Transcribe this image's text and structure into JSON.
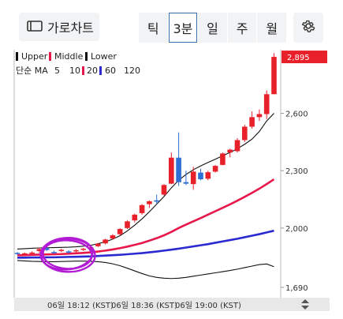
{
  "toolbar": {
    "landscape_label": "가로차트",
    "tabs": [
      {
        "label": "틱",
        "active": false
      },
      {
        "label": "3분",
        "active": true
      },
      {
        "label": "일",
        "active": false
      },
      {
        "label": "주",
        "active": false
      },
      {
        "label": "월",
        "active": false
      }
    ]
  },
  "legend": {
    "bollinger": [
      {
        "label": "Upper",
        "color": "#111111"
      },
      {
        "label": "Middle",
        "color": "#e8174a"
      },
      {
        "label": "Lower",
        "color": "#111111"
      }
    ],
    "ma_title": "단순 MA",
    "ma": [
      {
        "label": "5",
        "color": null
      },
      {
        "label": "10",
        "color": null
      },
      {
        "label": "20",
        "color": "#e8174a"
      },
      {
        "label": "60",
        "color": "#2a2ad0"
      },
      {
        "label": "120",
        "color": null
      }
    ]
  },
  "price_axis": {
    "ticks": [
      "2,600",
      "2,300",
      "2,000",
      "1,690"
    ],
    "current_price": "2,895"
  },
  "time_axis": {
    "labels": [
      "06일 18:12 (KST)",
      "06일 18:36 (KST)",
      "06일 19:00 (KST)"
    ]
  },
  "colors": {
    "up": "#e8202a",
    "down": "#2e6fd6",
    "ma20": "#e8174a",
    "ma60": "#2a2ad0",
    "band": "#111111",
    "annotation_circle": "#b21bd3"
  },
  "chart_data": {
    "type": "candlestick",
    "y_range": [
      1640,
      2920
    ],
    "y_ticks": [
      2600,
      2300,
      2000,
      1690
    ],
    "candles": [
      {
        "o": 1870,
        "h": 1875,
        "l": 1860,
        "c": 1865
      },
      {
        "o": 1865,
        "h": 1872,
        "l": 1858,
        "c": 1868
      },
      {
        "o": 1870,
        "h": 1878,
        "l": 1862,
        "c": 1872
      },
      {
        "o": 1880,
        "h": 1898,
        "l": 1870,
        "c": 1890
      },
      {
        "o": 1895,
        "h": 1902,
        "l": 1880,
        "c": 1885
      },
      {
        "o": 1875,
        "h": 1882,
        "l": 1866,
        "c": 1870
      },
      {
        "o": 1882,
        "h": 1892,
        "l": 1874,
        "c": 1886
      },
      {
        "o": 1878,
        "h": 1884,
        "l": 1866,
        "c": 1872
      },
      {
        "o": 1880,
        "h": 1890,
        "l": 1872,
        "c": 1884
      },
      {
        "o": 1886,
        "h": 1896,
        "l": 1880,
        "c": 1892
      },
      {
        "o": 1893,
        "h": 1905,
        "l": 1886,
        "c": 1900
      },
      {
        "o": 1905,
        "h": 1922,
        "l": 1900,
        "c": 1918
      },
      {
        "o": 1920,
        "h": 1944,
        "l": 1914,
        "c": 1940
      },
      {
        "o": 1945,
        "h": 1968,
        "l": 1940,
        "c": 1962
      },
      {
        "o": 1968,
        "h": 2000,
        "l": 1960,
        "c": 1995
      },
      {
        "o": 2000,
        "h": 2040,
        "l": 1995,
        "c": 2035
      },
      {
        "o": 2040,
        "h": 2075,
        "l": 2030,
        "c": 2070
      },
      {
        "o": 2078,
        "h": 2125,
        "l": 2070,
        "c": 2120
      },
      {
        "o": 2125,
        "h": 2145,
        "l": 2105,
        "c": 2140
      },
      {
        "o": 2145,
        "h": 2175,
        "l": 2125,
        "c": 2138
      },
      {
        "o": 2175,
        "h": 2230,
        "l": 2170,
        "c": 2225
      },
      {
        "o": 2232,
        "h": 2395,
        "l": 2230,
        "c": 2368
      },
      {
        "o": 2368,
        "h": 2500,
        "l": 2220,
        "c": 2240
      },
      {
        "o": 2240,
        "h": 2300,
        "l": 2225,
        "c": 2232
      },
      {
        "o": 2230,
        "h": 2320,
        "l": 2200,
        "c": 2295
      },
      {
        "o": 2290,
        "h": 2310,
        "l": 2250,
        "c": 2255
      },
      {
        "o": 2258,
        "h": 2300,
        "l": 2250,
        "c": 2292
      },
      {
        "o": 2295,
        "h": 2330,
        "l": 2290,
        "c": 2325
      },
      {
        "o": 2330,
        "h": 2395,
        "l": 2328,
        "c": 2390
      },
      {
        "o": 2395,
        "h": 2415,
        "l": 2370,
        "c": 2410
      },
      {
        "o": 2402,
        "h": 2470,
        "l": 2395,
        "c": 2460
      },
      {
        "o": 2460,
        "h": 2540,
        "l": 2450,
        "c": 2530
      },
      {
        "o": 2530,
        "h": 2610,
        "l": 2520,
        "c": 2580
      },
      {
        "o": 2580,
        "h": 2620,
        "l": 2560,
        "c": 2596
      },
      {
        "o": 2596,
        "h": 2720,
        "l": 2570,
        "c": 2700
      },
      {
        "o": 2700,
        "h": 2915,
        "l": 2700,
        "c": 2895
      }
    ],
    "ma20": [
      1858,
      1858,
      1860,
      1861,
      1862,
      1863,
      1864,
      1866,
      1868,
      1870,
      1873,
      1877,
      1882,
      1888,
      1895,
      1903,
      1912,
      1922,
      1934,
      1947,
      1962,
      1980,
      2000,
      2018,
      2035,
      2052,
      2070,
      2088,
      2106,
      2124,
      2143,
      2163,
      2184,
      2206,
      2230,
      2255
    ],
    "ma60": [
      1845,
      1845,
      1846,
      1846,
      1847,
      1847,
      1848,
      1849,
      1850,
      1851,
      1852,
      1854,
      1856,
      1858,
      1860,
      1863,
      1866,
      1869,
      1873,
      1877,
      1882,
      1887,
      1892,
      1898,
      1904,
      1910,
      1916,
      1923,
      1930,
      1937,
      1944,
      1952,
      1960,
      1968,
      1977,
      1986
    ],
    "bb_upper": [
      1890,
      1892,
      1894,
      1896,
      1897,
      1898,
      1899,
      1900,
      1902,
      1905,
      1910,
      1918,
      1928,
      1942,
      1960,
      1985,
      2015,
      2048,
      2085,
      2125,
      2165,
      2210,
      2250,
      2280,
      2305,
      2325,
      2343,
      2360,
      2378,
      2395,
      2415,
      2438,
      2465,
      2505,
      2560,
      2600
    ],
    "bb_lower": [
      1830,
      1828,
      1826,
      1825,
      1824,
      1824,
      1825,
      1826,
      1827,
      1827,
      1826,
      1824,
      1820,
      1813,
      1803,
      1790,
      1776,
      1762,
      1750,
      1742,
      1738,
      1736,
      1738,
      1742,
      1748,
      1754,
      1760,
      1766,
      1772,
      1778,
      1785,
      1793,
      1801,
      1809,
      1812,
      1798
    ],
    "annotation_circle_center_index": 5
  }
}
